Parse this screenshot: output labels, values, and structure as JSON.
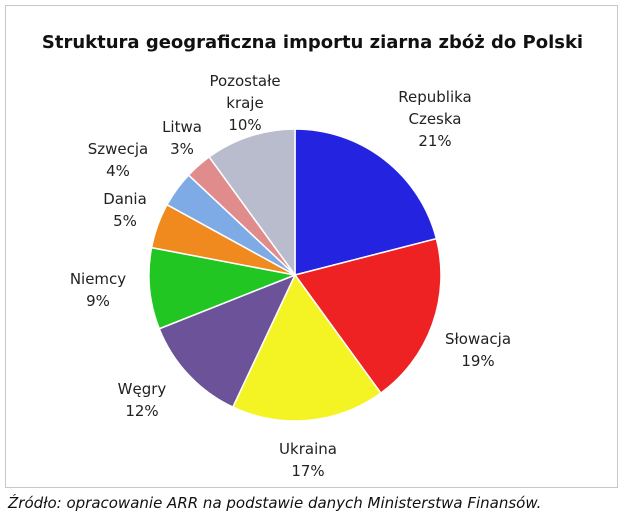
{
  "chart_data": {
    "type": "pie",
    "title": "Struktura geograficzna importu ziarna zbóż do Polski",
    "categories": [
      "Republika Czeska",
      "Słowacja",
      "Ukraina",
      "Węgry",
      "Niemcy",
      "Dania",
      "Szwecja",
      "Litwa",
      "Pozostałe kraje"
    ],
    "values": [
      21,
      19,
      17,
      12,
      9,
      5,
      4,
      3,
      10
    ],
    "value_labels": [
      "21%",
      "19%",
      "17%",
      "12%",
      "9%",
      "5%",
      "4%",
      "3%",
      "10%"
    ],
    "colors": [
      "#2424e0",
      "#ee2222",
      "#f4f424",
      "#6b5299",
      "#22c622",
      "#f08a1e",
      "#7eaae6",
      "#e08c8c",
      "#b9bccd"
    ],
    "source": "Źródło: opracowanie ARR na podstawie danych Ministerstwa Finansów."
  }
}
